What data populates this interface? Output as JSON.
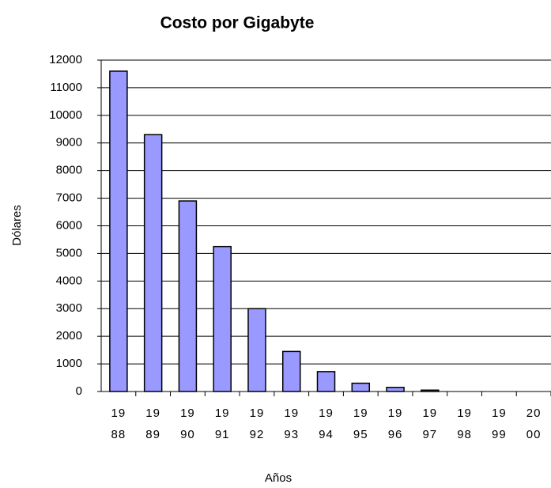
{
  "chart_data": {
    "type": "bar",
    "title": "Costo por Gigabyte",
    "x_label": "Años",
    "y_label": "Dólares",
    "categories": [
      "1988",
      "1989",
      "1990",
      "1991",
      "1992",
      "1993",
      "1994",
      "1995",
      "1996",
      "1997",
      "1998",
      "1999",
      "2000"
    ],
    "values": [
      11600,
      9300,
      6900,
      5250,
      3000,
      1450,
      720,
      300,
      150,
      50,
      0,
      0,
      0
    ],
    "color": "#9999ff",
    "ylim": [
      0,
      12000
    ],
    "yticks": [
      0,
      1000,
      2000,
      3000,
      4000,
      5000,
      6000,
      7000,
      8000,
      9000,
      10000,
      11000,
      12000
    ],
    "grid": true
  }
}
